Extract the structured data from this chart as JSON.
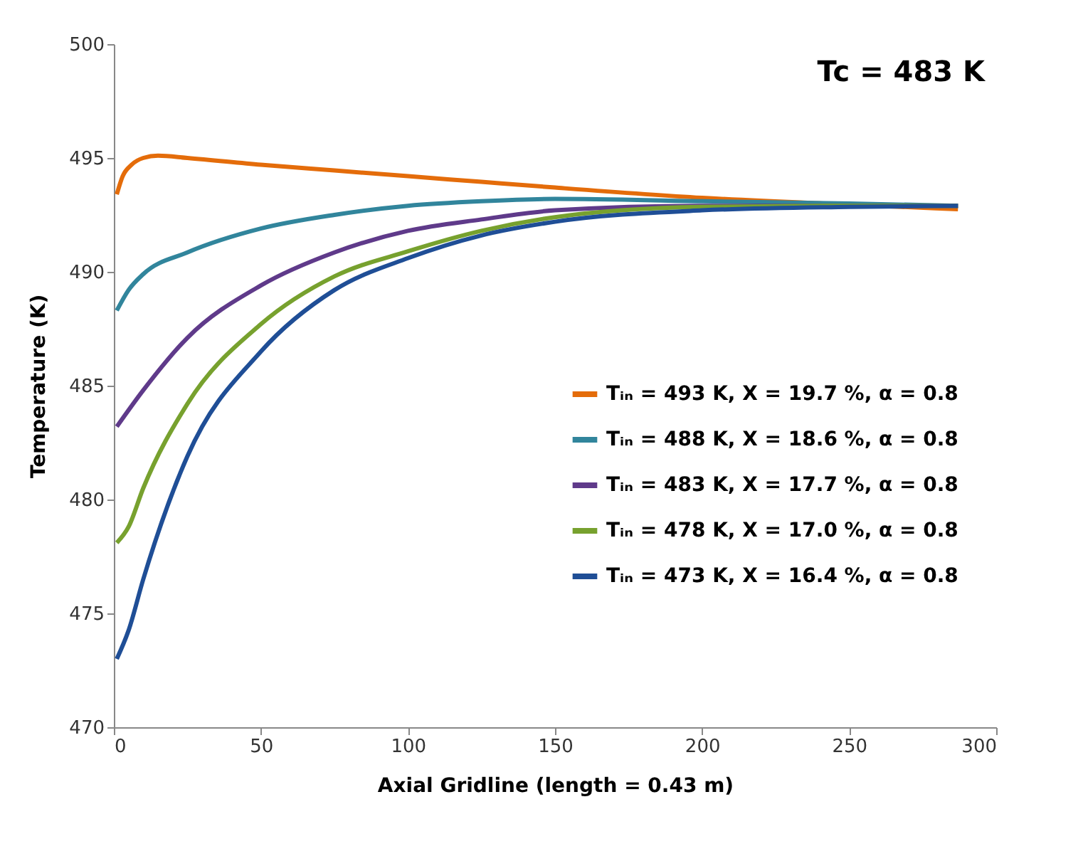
{
  "chart_data": {
    "type": "line",
    "xlabel": "Axial Gridline  (length = 0.43 m)",
    "ylabel": "Temperature (K)",
    "annotations": [
      "Tc = 483 K"
    ],
    "x": [
      1,
      3,
      6,
      10,
      15,
      25,
      50,
      75,
      100,
      125,
      150,
      200,
      250,
      287
    ],
    "series": [
      {
        "name": "Tᵢₙ = 493 K, X = 19.7 %, α = 0.8",
        "color": "#e46c0a",
        "values": [
          493.4,
          494.2,
          494.7,
          495.0,
          495.1,
          495.0,
          494.7,
          494.45,
          494.2,
          493.95,
          493.7,
          493.25,
          492.95,
          492.75
        ]
      },
      {
        "name": "Tᵢₙ = 488 K, X = 18.6 %, α = 0.8",
        "color": "#31859c",
        "x": [
          1,
          5,
          10,
          25,
          50,
          75,
          100,
          125,
          150,
          200,
          250,
          287
        ],
        "values": [
          488.3,
          489.2,
          489.9,
          490.85,
          491.9,
          492.5,
          492.9,
          493.1,
          493.2,
          493.1,
          493.0,
          492.9
        ]
      },
      {
        "name": "Tᵢₙ = 483 K, X = 17.7 %, α = 0.8",
        "color": "#5f3a8a",
        "x": [
          1,
          10,
          25,
          50,
          75,
          100,
          125,
          150,
          200,
          250,
          287
        ],
        "values": [
          483.2,
          484.8,
          487.1,
          489.4,
          490.85,
          491.8,
          492.3,
          492.7,
          492.9,
          492.9,
          492.9
        ]
      },
      {
        "name": "Tᵢₙ = 478 K, X = 17.0 %, α = 0.8",
        "color": "#77a12e",
        "x": [
          1,
          5,
          10,
          25,
          50,
          75,
          100,
          125,
          150,
          200,
          250,
          287
        ],
        "values": [
          478.1,
          478.8,
          480.5,
          484.2,
          487.7,
          489.8,
          490.9,
          491.8,
          492.4,
          492.85,
          492.9,
          492.9
        ]
      },
      {
        "name": "Tᵢₙ = 473 K, X = 16.4 %, α = 0.8",
        "color": "#1f4e96",
        "x": [
          1,
          5,
          10,
          25,
          50,
          75,
          100,
          125,
          150,
          200,
          250,
          287
        ],
        "values": [
          473.0,
          474.25,
          476.5,
          481.9,
          486.5,
          489.2,
          490.6,
          491.6,
          492.2,
          492.7,
          492.85,
          492.9
        ]
      }
    ],
    "xlim": [
      0,
      300
    ],
    "xticks": [
      0,
      50,
      100,
      150,
      200,
      250,
      300
    ],
    "ylim": [
      470,
      500
    ],
    "yticks": [
      470,
      475,
      480,
      485,
      490,
      495,
      500
    ],
    "grid": false,
    "legend": "right",
    "marker": "none",
    "line_style": "solid"
  }
}
